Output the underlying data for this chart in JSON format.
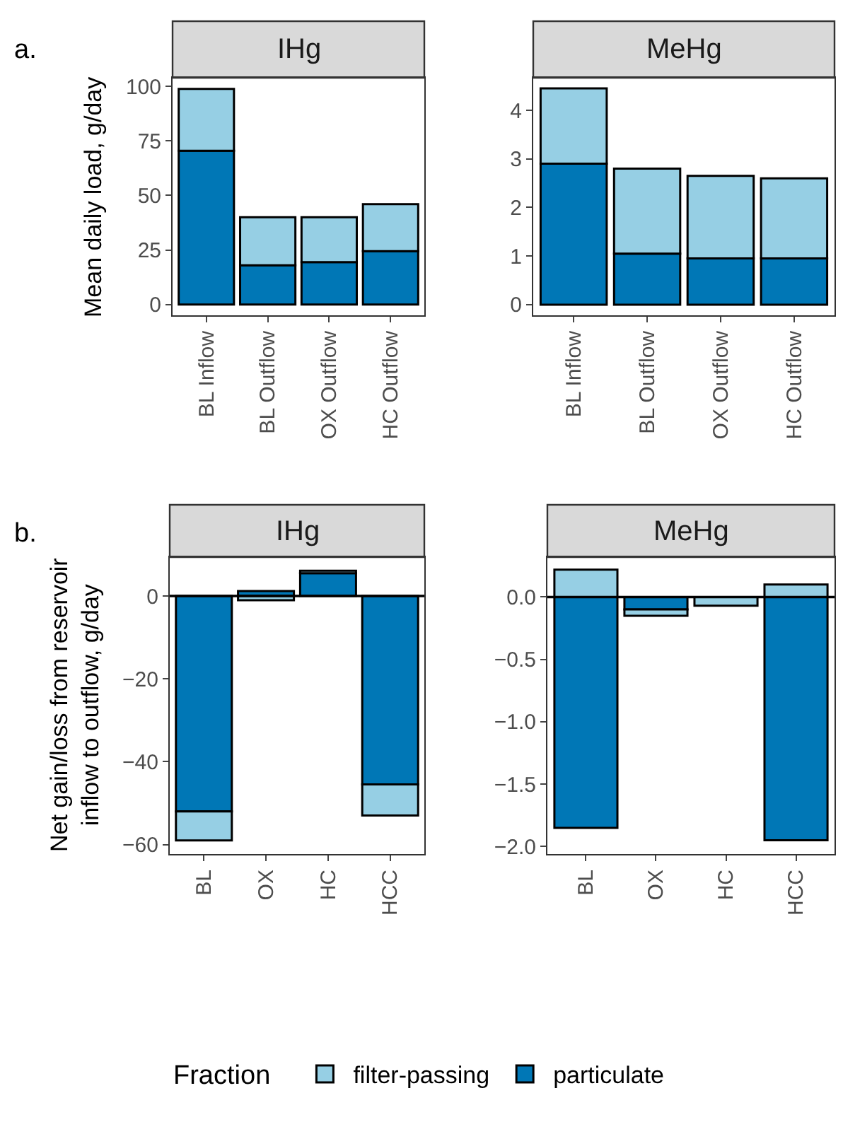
{
  "chart_data": [
    {
      "type": "bar",
      "title": "IHg",
      "ylabel": "Mean daily load, g/day",
      "annotations": [
        "a."
      ],
      "categories": [
        "BL Inflow",
        "BL Outflow",
        "OX Outflow",
        "HC Outflow"
      ],
      "stacked": true,
      "ylim": [
        -4.9,
        103.9
      ],
      "yticks": [
        0,
        25,
        50,
        75,
        100
      ],
      "legend": "bottom",
      "legend_title": "Fraction",
      "series": [
        {
          "name": "particulate",
          "color": "#0077b6",
          "values": [
            70.5,
            18,
            19.5,
            24.5
          ]
        },
        {
          "name": "filter-passing",
          "color": "#96cfe4",
          "values": [
            28.3,
            22,
            20.5,
            21.5
          ]
        }
      ]
    },
    {
      "type": "bar",
      "title": "MeHg",
      "categories": [
        "BL Inflow",
        "BL Outflow",
        "OX Outflow",
        "HC Outflow"
      ],
      "stacked": true,
      "ylim": [
        -0.22,
        4.67
      ],
      "yticks": [
        0,
        1,
        2,
        3,
        4
      ],
      "series": [
        {
          "color": "#0077b6",
          "values": [
            2.9,
            1.05,
            0.95,
            0.95
          ]
        },
        {
          "color": "#96cfe4",
          "values": [
            1.55,
            1.75,
            1.7,
            1.65
          ]
        }
      ]
    },
    {
      "type": "bar",
      "title": "IHg",
      "ylabel": "Net gain/loss from reservoir\ninflow to outflow, g/day",
      "annotations": [
        "b."
      ],
      "categories": [
        "BL",
        "OX",
        "HC",
        "HCC"
      ],
      "stacked": true,
      "ylim": [
        -62.3,
        9.4
      ],
      "yticks": [
        0,
        -20,
        -40,
        -60
      ],
      "ref_lines": [
        {
          "axis": "y",
          "value": 0
        }
      ],
      "series": [
        {
          "color": "#0077b6",
          "values": [
            -52,
            1.2,
            5.5,
            -45.5
          ]
        },
        {
          "color": "#96cfe4",
          "values": [
            -7,
            -1,
            0.6,
            -7.5
          ]
        }
      ]
    },
    {
      "type": "bar",
      "title": "MeHg",
      "categories": [
        "BL",
        "OX",
        "HC",
        "HCC"
      ],
      "stacked": true,
      "ylim": [
        -2.06,
        0.32
      ],
      "yticks": [
        {
          "value": 0,
          "label": "0.0"
        },
        -0.5,
        {
          "value": -1,
          "label": "−1.0"
        },
        -1.5,
        {
          "value": -2,
          "label": "−2.0"
        }
      ],
      "ref_lines": [
        {
          "axis": "y",
          "value": 0
        }
      ],
      "series": [
        {
          "color": "#0077b6",
          "values": [
            -1.85,
            -0.1,
            null,
            -1.95
          ]
        },
        {
          "color": "#96cfe4",
          "values": [
            0.22,
            -0.05,
            -0.07,
            0.1
          ]
        }
      ]
    }
  ]
}
